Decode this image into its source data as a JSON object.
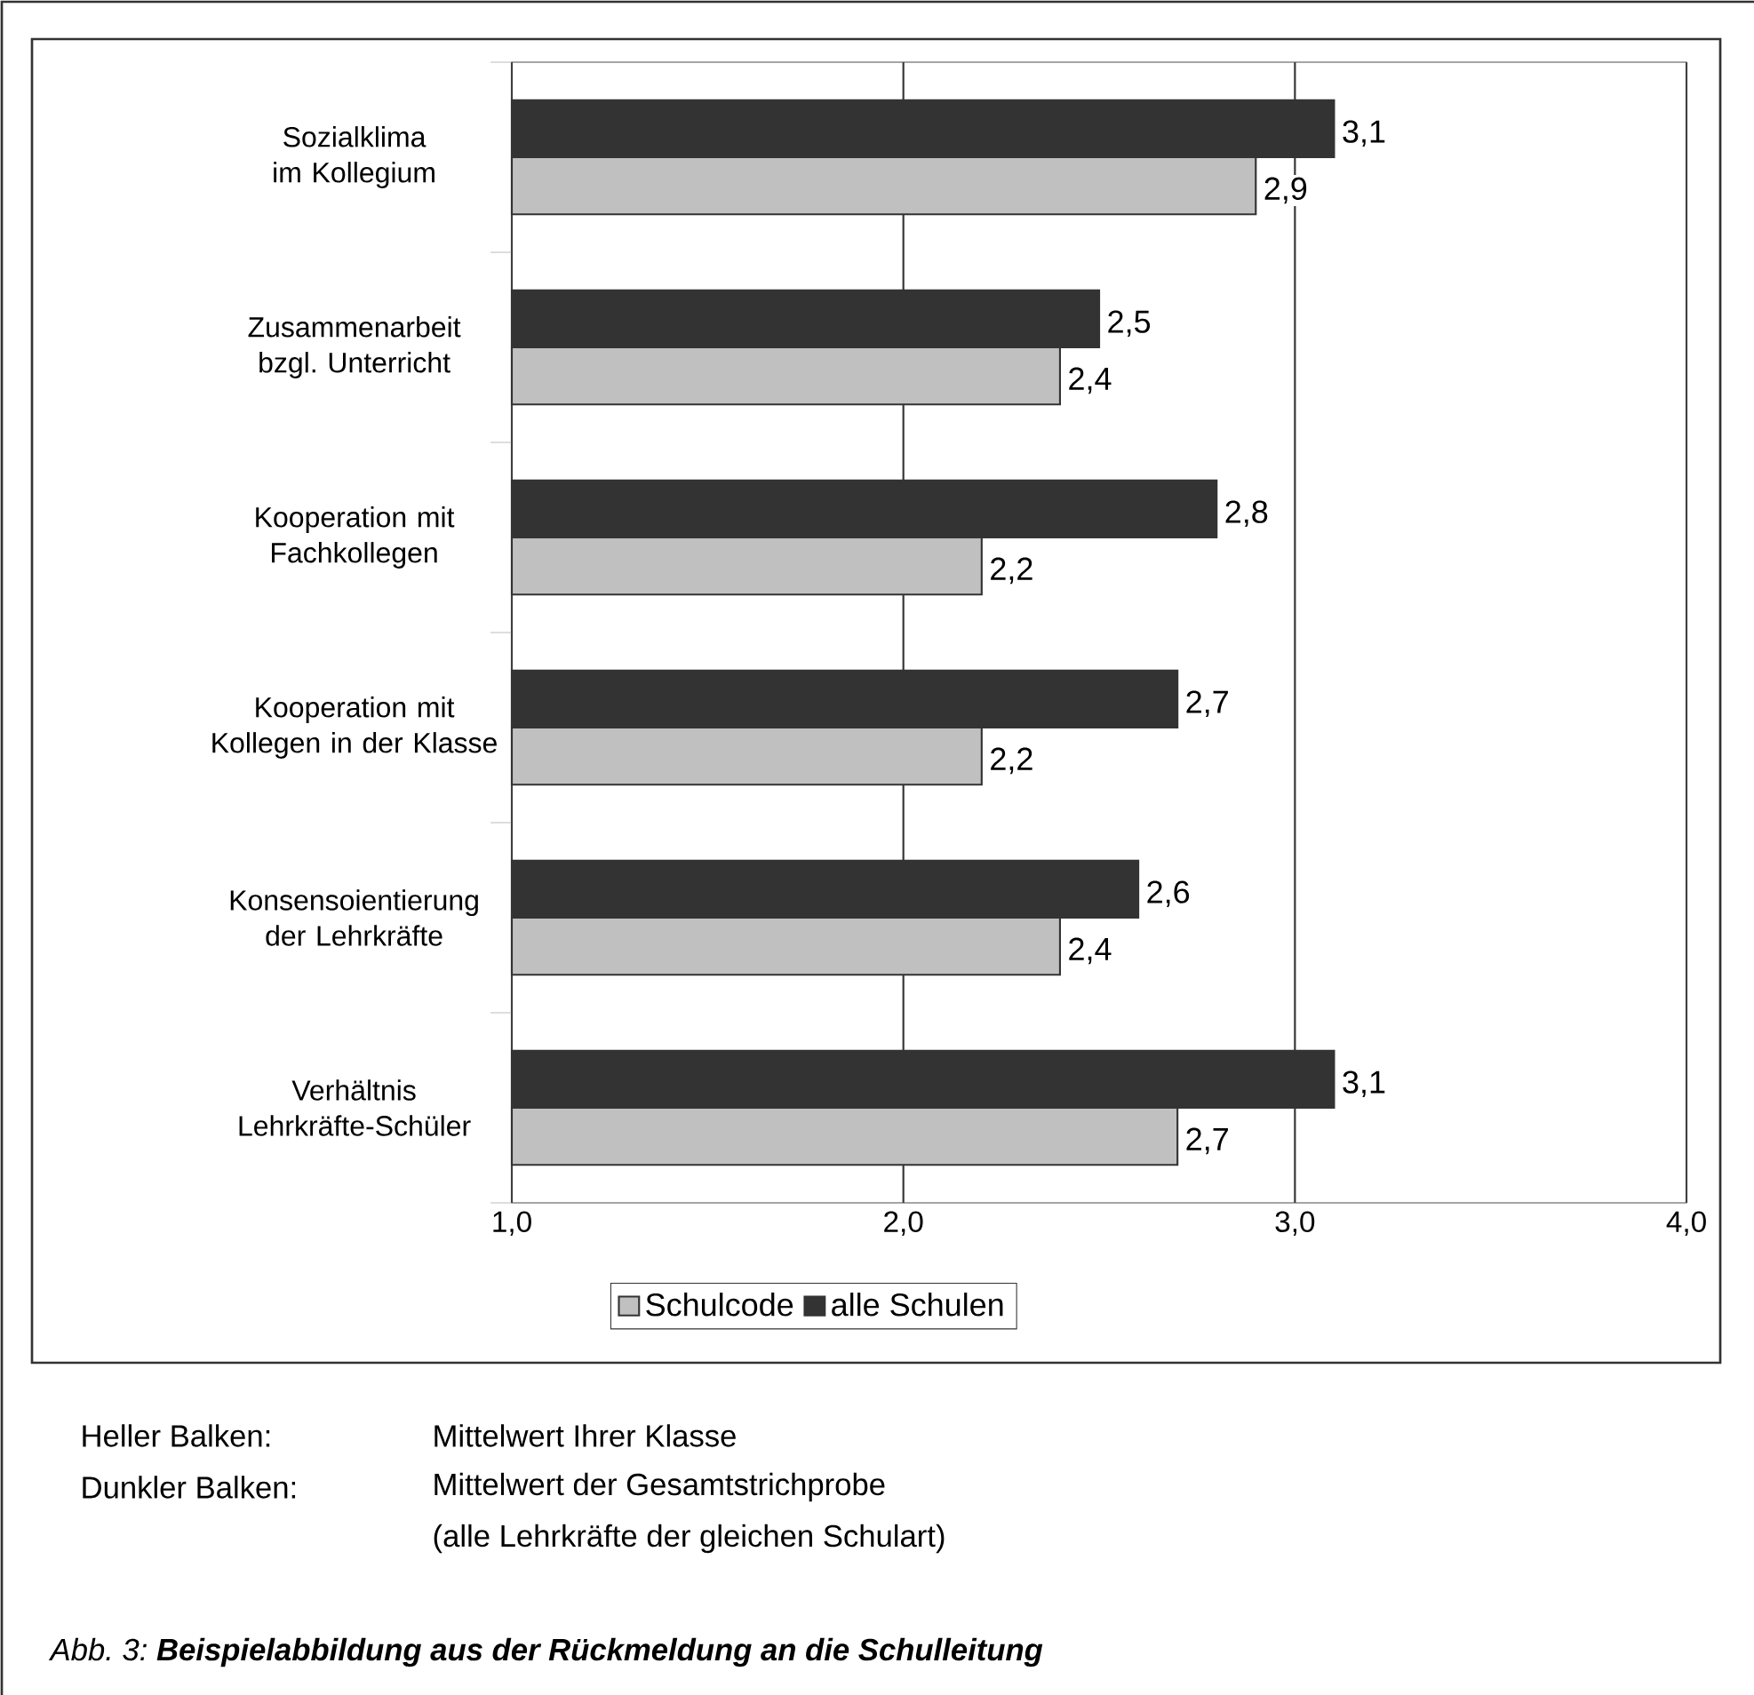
{
  "chart_data": {
    "type": "bar",
    "orientation": "horizontal",
    "categories": [
      "Sozialklima im Kollegium",
      "Zusammenarbeit bzgl. Unterricht",
      "Kooperation mit Fachkollegen",
      "Kooperation mit Kollegen in der Klasse",
      "Konsensoientierung der Lehrkräfte",
      "Verhältnis Lehrkräfte-Schüler"
    ],
    "series": [
      {
        "name": "Schulcode",
        "color": "#c0c0c0",
        "values": [
          2.9,
          2.4,
          2.2,
          2.2,
          2.4,
          2.7
        ],
        "value_labels": [
          "2,9",
          "2,4",
          "2,2",
          "2,2",
          "2,4",
          "2,7"
        ]
      },
      {
        "name": "alle Schulen",
        "color": "#333333",
        "values": [
          3.1,
          2.5,
          2.8,
          2.7,
          2.6,
          3.1
        ],
        "value_labels": [
          "3,1",
          "2,5",
          "2,8",
          "2,7",
          "2,6",
          "3,1"
        ]
      }
    ],
    "xlim": [
      1,
      4
    ],
    "xticks": [
      {
        "value": 1,
        "label": "1,0"
      },
      {
        "value": 2,
        "label": "2,0"
      },
      {
        "value": 3,
        "label": "3,0"
      },
      {
        "value": 4,
        "label": "4,0"
      }
    ],
    "grid": "x",
    "legend": "bottom",
    "annotations": [
      "Heller Balken:",
      "Mittelwert Ihrer Klasse",
      "Dunkler Balken:",
      "Mittelwert der Gesamtstrichprobe",
      "(alle Lehrkräfte der gleichen Schulart)",
      "Abb. 3: **Beispielabbildung aus der Rückmeldung an die Schulleitung**"
    ]
  }
}
